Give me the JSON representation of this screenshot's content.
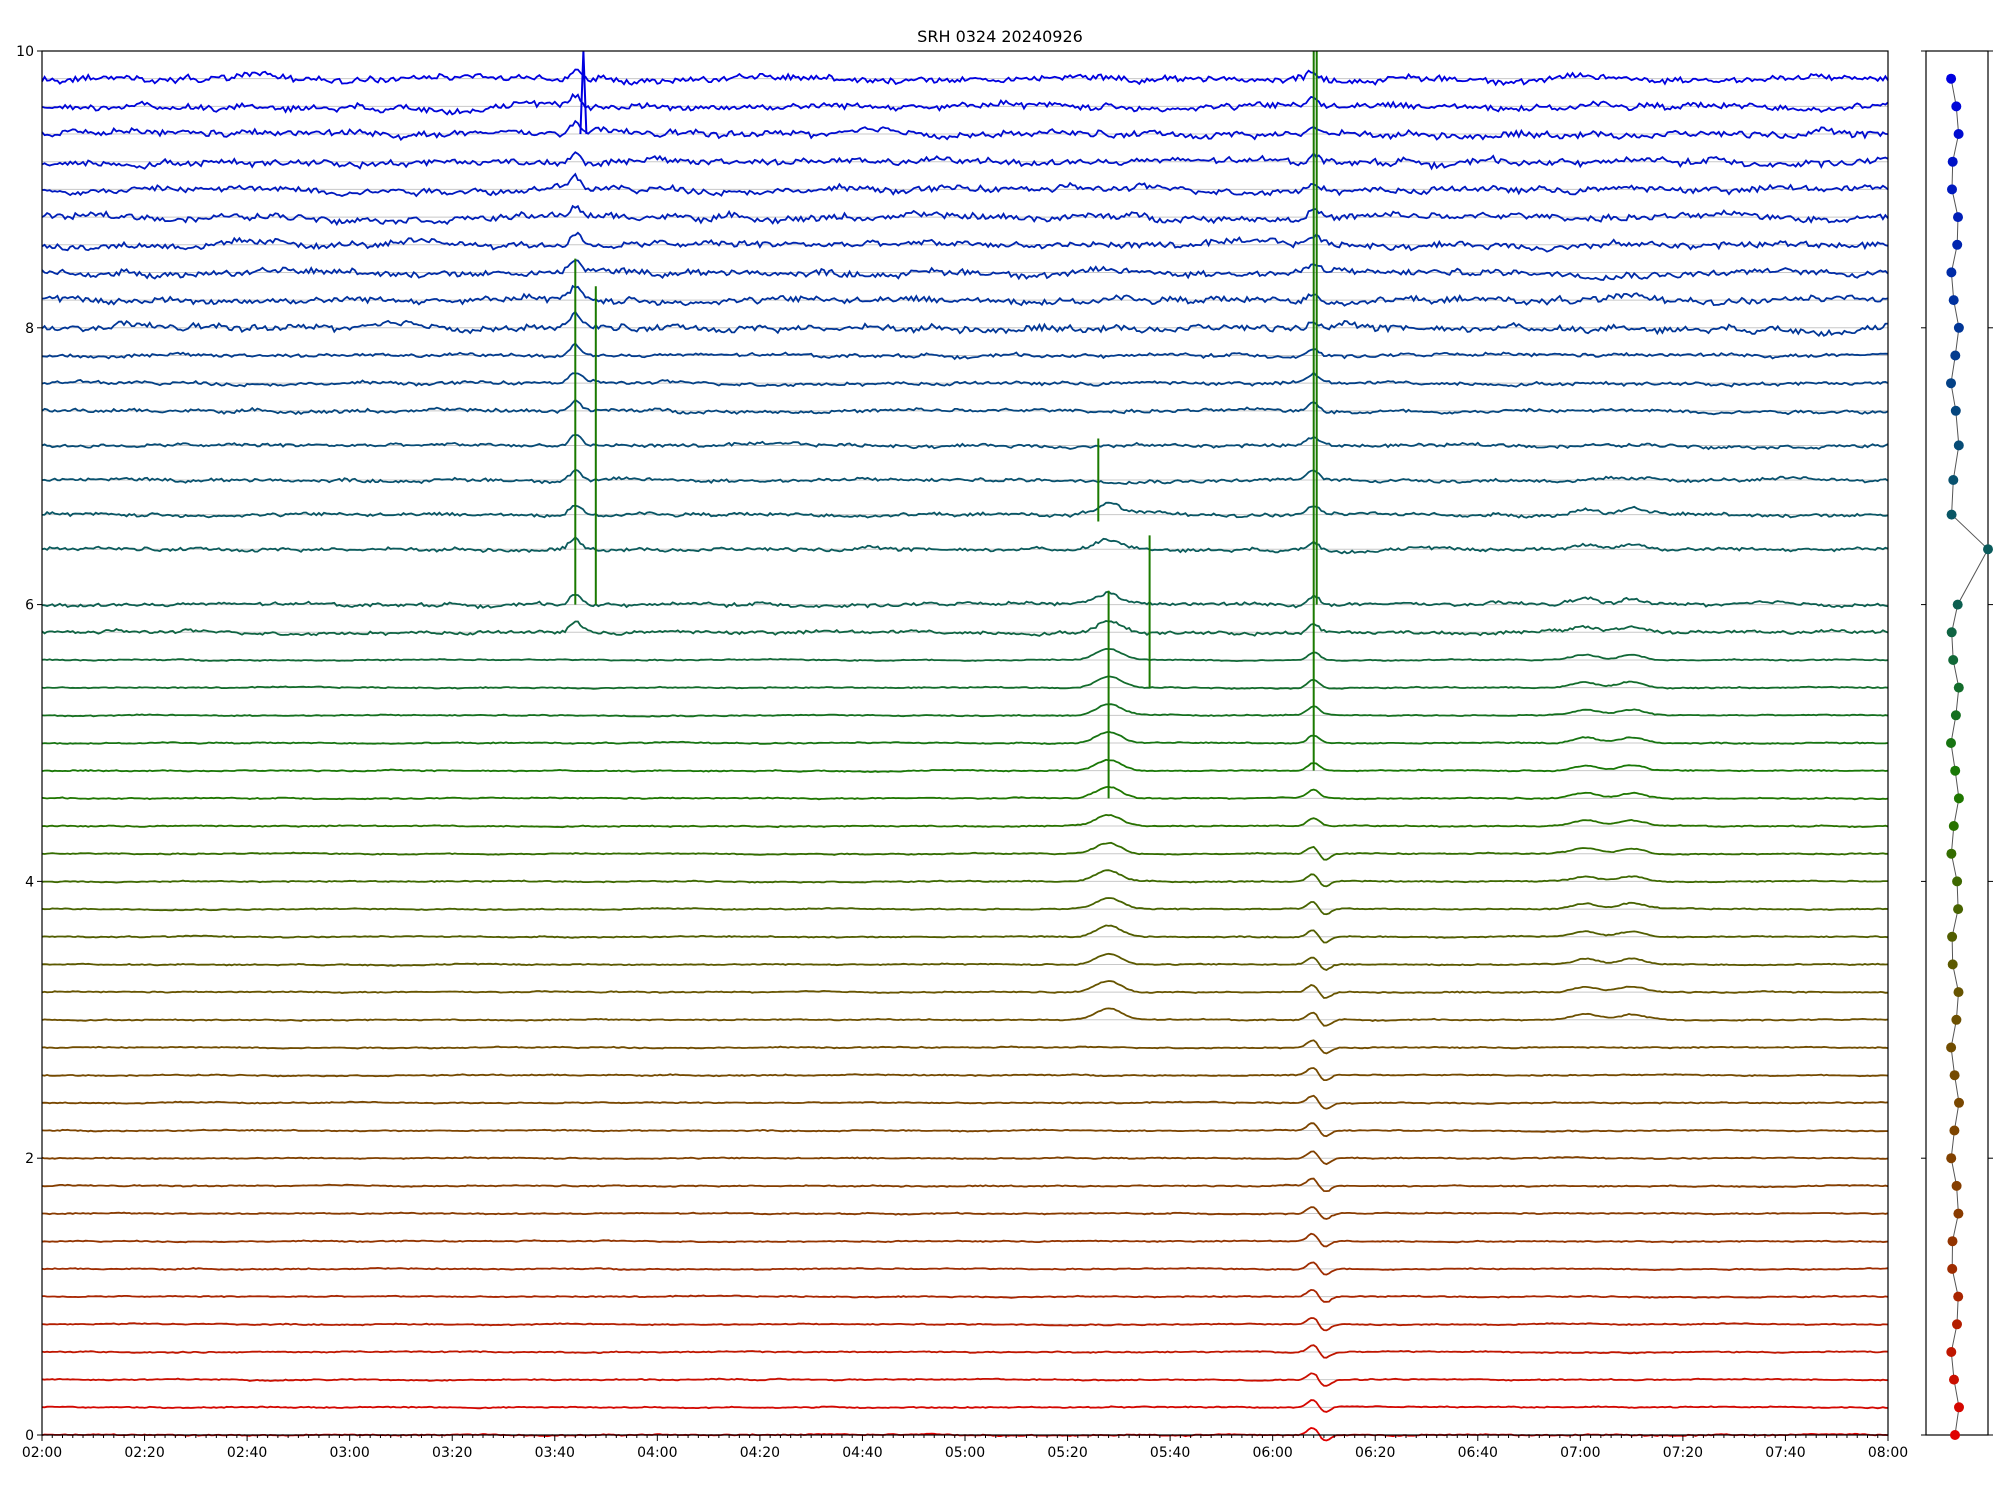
{
  "chart_data": {
    "type": "line",
    "title": "SRH 0324 20240926",
    "xlabel": "",
    "ylabel": "",
    "xlim": [
      "02:00",
      "08:00"
    ],
    "ylim": [
      0,
      10
    ],
    "x_ticks": [
      "02:00",
      "02:20",
      "02:40",
      "03:00",
      "03:20",
      "03:40",
      "04:00",
      "04:20",
      "04:40",
      "05:00",
      "05:20",
      "05:40",
      "06:00",
      "06:20",
      "06:40",
      "07:00",
      "07:20",
      "07:40",
      "08:00"
    ],
    "y_ticks": [
      0,
      2,
      4,
      6,
      8,
      10
    ],
    "grid": "horizontal lines at each trace baseline",
    "legend": "none",
    "color_ramp": [
      "#e00000",
      "#8a3a00",
      "#6a5200",
      "#1a7a00",
      "#0a5a60",
      "#0030a0",
      "#0000e0"
    ],
    "series_count": 48,
    "baselines": [
      0.0,
      0.2,
      0.4,
      0.6,
      0.8,
      1.0,
      1.2,
      1.4,
      1.6,
      1.8,
      2.0,
      2.2,
      2.4,
      2.6,
      2.8,
      3.0,
      3.2,
      3.4,
      3.6,
      3.8,
      4.0,
      4.2,
      4.4,
      4.6,
      4.8,
      5.0,
      5.2,
      5.4,
      5.6,
      5.8,
      6.0,
      6.4,
      6.65,
      6.9,
      7.15,
      7.4,
      7.6,
      7.8,
      8.0,
      8.2,
      8.4,
      8.6,
      8.8,
      9.0,
      9.2,
      9.4,
      9.6,
      9.8
    ],
    "events": [
      {
        "time": "03:44",
        "channels": "blue/green",
        "type": "spike"
      },
      {
        "time": "05:28",
        "channels": "green/brown",
        "type": "spike"
      },
      {
        "time": "06:08",
        "channels": "all",
        "type": "spike"
      },
      {
        "time": "06:10",
        "channels": "red",
        "type": "dip"
      },
      {
        "time": "07:01",
        "channels": "green/brown",
        "type": "bump"
      },
      {
        "time": "07:10",
        "channels": "green/brown",
        "type": "bump"
      }
    ],
    "side_panel": {
      "type": "scatter",
      "points": 48
    }
  }
}
